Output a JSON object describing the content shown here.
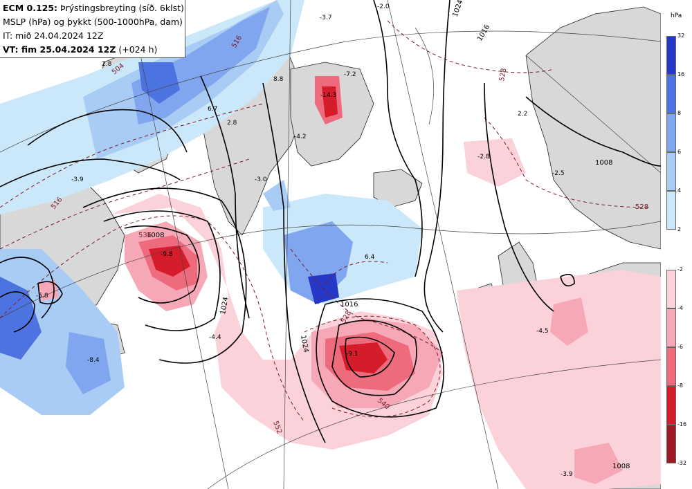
{
  "info": {
    "line1_model": "ECM 0.125:",
    "line1_rest": "Þrýstingsbreyting (síð. 6klst)",
    "line2": "MSLP (hPa) og þykkt (500-1000hPa, dam)",
    "line3": "IT: mið 24.04.2024 12Z",
    "line4_bold": "VT: fim 25.04.2024 12Z",
    "line4_rest": "(+024 h)"
  },
  "legend": {
    "unit": "hPa",
    "rise_colors": [
      "#2738c6",
      "#4d73e0",
      "#7fa6ee",
      "#a9ccf5",
      "#cbe7fa"
    ],
    "rise_ticks": [
      "32",
      "16",
      "8",
      "6",
      "4",
      "2"
    ],
    "fall_colors": [
      "#fbd1da",
      "#f6a8b7",
      "#ee6a7d",
      "#d51c2b",
      "#9c1b25"
    ],
    "fall_ticks": [
      "-2",
      "-4",
      "-6",
      "-8",
      "-16",
      "-32"
    ]
  },
  "map_labels": {
    "isobars": [
      "1008",
      "1024",
      "1016",
      "1024",
      "1016",
      "1024",
      "1008",
      "1008"
    ],
    "thickness": [
      "528",
      "528",
      "528",
      "536",
      "540",
      "552",
      "516",
      "516",
      "504"
    ],
    "tendency": [
      "2.8",
      "-3.9",
      "6.7",
      "2.8",
      "8.8",
      "-7.2",
      "-14.3",
      "-4.2",
      "-3.0",
      "-3.7",
      "-2.0",
      "2.2",
      "-2.8",
      "-2.5",
      "-9.8",
      "-5.8",
      "-8.4",
      "-4.4",
      "6.4",
      "-9.1",
      "-4.5",
      "-3.9"
    ]
  }
}
